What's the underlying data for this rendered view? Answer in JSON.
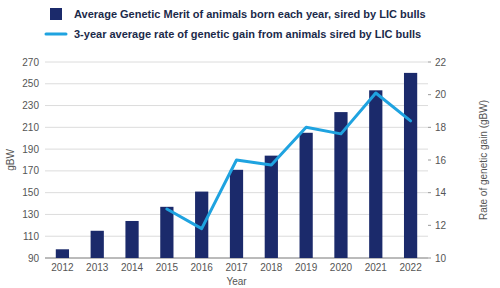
{
  "chart_data": {
    "type": "bar",
    "categories": [
      "2012",
      "2013",
      "2014",
      "2015",
      "2016",
      "2017",
      "2018",
      "2019",
      "2020",
      "2021",
      "2022"
    ],
    "series": [
      {
        "name": "Average Genetic Merit of animals born each year, sired by LIC bulls",
        "type": "bar",
        "color": "#1b2a6b",
        "values": [
          98,
          115,
          124,
          137,
          151,
          171,
          184,
          205,
          224,
          244,
          260
        ]
      },
      {
        "name": "3-year average rate of genetic gain from animals sired by LIC bulls",
        "type": "line",
        "axis": "y2",
        "color": "#1fa3e0",
        "values": [
          null,
          null,
          null,
          13.0,
          11.8,
          16.0,
          15.7,
          18.0,
          17.6,
          20.1,
          18.4
        ]
      }
    ],
    "x_label": "Year",
    "y_label": "gBW",
    "y2_label": "Rate of genetic gain (gBW)",
    "ylim": [
      90,
      270
    ],
    "yticks": [
      90,
      110,
      130,
      150,
      170,
      190,
      210,
      230,
      250,
      270
    ],
    "y2lim": [
      10,
      22
    ],
    "y2ticks": [
      10,
      12,
      14,
      16,
      18,
      20,
      22
    ],
    "grid": true,
    "legend": "top-left"
  }
}
